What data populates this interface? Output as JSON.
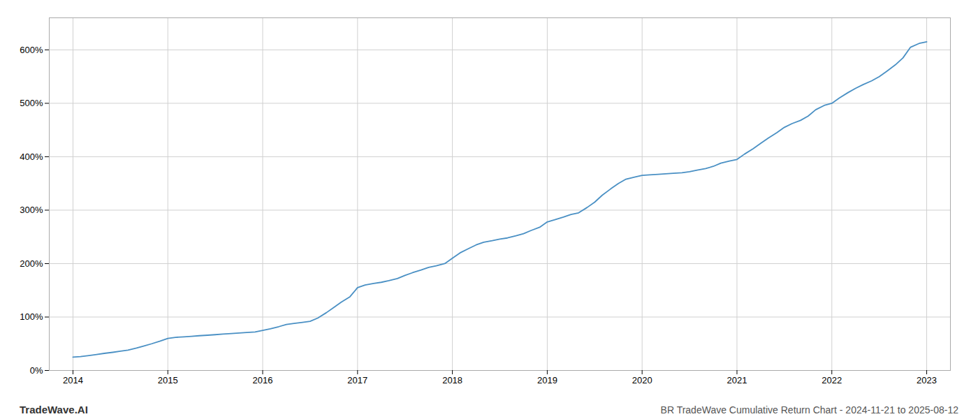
{
  "chart_data": {
    "type": "line",
    "title": "BR TradeWave Cumulative Return Chart - 2024-11-21 to 2025-08-12",
    "annotations": [
      "TradeWave.AI"
    ],
    "color": "#4a90c4",
    "grid": true,
    "x": [
      2014.0,
      2014.08,
      2014.17,
      2014.25,
      2014.33,
      2014.42,
      2014.5,
      2014.58,
      2014.67,
      2014.75,
      2014.83,
      2014.92,
      2015.0,
      2015.08,
      2015.17,
      2015.25,
      2015.33,
      2015.42,
      2015.5,
      2015.58,
      2015.67,
      2015.75,
      2015.83,
      2015.92,
      2016.0,
      2016.08,
      2016.17,
      2016.25,
      2016.33,
      2016.42,
      2016.5,
      2016.58,
      2016.67,
      2016.75,
      2016.83,
      2016.92,
      2017.0,
      2017.08,
      2017.17,
      2017.25,
      2017.33,
      2017.42,
      2017.5,
      2017.58,
      2017.67,
      2017.75,
      2017.83,
      2017.92,
      2018.0,
      2018.08,
      2018.17,
      2018.25,
      2018.33,
      2018.42,
      2018.5,
      2018.58,
      2018.67,
      2018.75,
      2018.83,
      2018.92,
      2019.0,
      2019.08,
      2019.17,
      2019.25,
      2019.33,
      2019.42,
      2019.5,
      2019.58,
      2019.67,
      2019.75,
      2019.83,
      2019.92,
      2020.0,
      2020.08,
      2020.17,
      2020.25,
      2020.33,
      2020.42,
      2020.5,
      2020.58,
      2020.67,
      2020.75,
      2020.83,
      2020.92,
      2021.0,
      2021.08,
      2021.17,
      2021.25,
      2021.33,
      2021.42,
      2021.5,
      2021.58,
      2021.67,
      2021.75,
      2021.83,
      2021.92,
      2022.0,
      2022.08,
      2022.17,
      2022.25,
      2022.33,
      2022.42,
      2022.5,
      2022.58,
      2022.67,
      2022.75,
      2022.83,
      2022.92,
      2023.0
    ],
    "values": [
      25,
      26,
      28,
      30,
      32,
      34,
      36,
      38,
      42,
      46,
      50,
      55,
      60,
      62,
      63,
      64,
      65,
      66,
      67,
      68,
      69,
      70,
      71,
      72,
      75,
      78,
      82,
      86,
      88,
      90,
      92,
      98,
      108,
      118,
      128,
      138,
      155,
      160,
      163,
      165,
      168,
      172,
      178,
      183,
      188,
      193,
      196,
      200,
      210,
      220,
      228,
      235,
      240,
      243,
      246,
      248,
      252,
      256,
      262,
      268,
      278,
      282,
      287,
      292,
      295,
      305,
      315,
      328,
      340,
      350,
      358,
      362,
      365,
      366,
      367,
      368,
      369,
      370,
      372,
      375,
      378,
      382,
      388,
      392,
      395,
      405,
      415,
      425,
      435,
      445,
      455,
      462,
      468,
      476,
      488,
      496,
      500,
      510,
      520,
      528,
      535,
      542,
      550,
      560,
      572,
      585,
      605,
      612,
      615
    ],
    "xlim": [
      2013.75,
      2023.25
    ],
    "xticks": [
      2014,
      2015,
      2016,
      2017,
      2018,
      2019,
      2020,
      2021,
      2022,
      2023
    ],
    "ylim": [
      0,
      660
    ],
    "yticks": [
      {
        "value": 0,
        "label": "0%"
      },
      {
        "value": 100,
        "label": "100%"
      },
      {
        "value": 200,
        "label": "200%"
      },
      {
        "value": 300,
        "label": "300%"
      },
      {
        "value": 400,
        "label": "400%"
      },
      {
        "value": 500,
        "label": "500%"
      },
      {
        "value": 600,
        "label": "600%"
      }
    ]
  }
}
